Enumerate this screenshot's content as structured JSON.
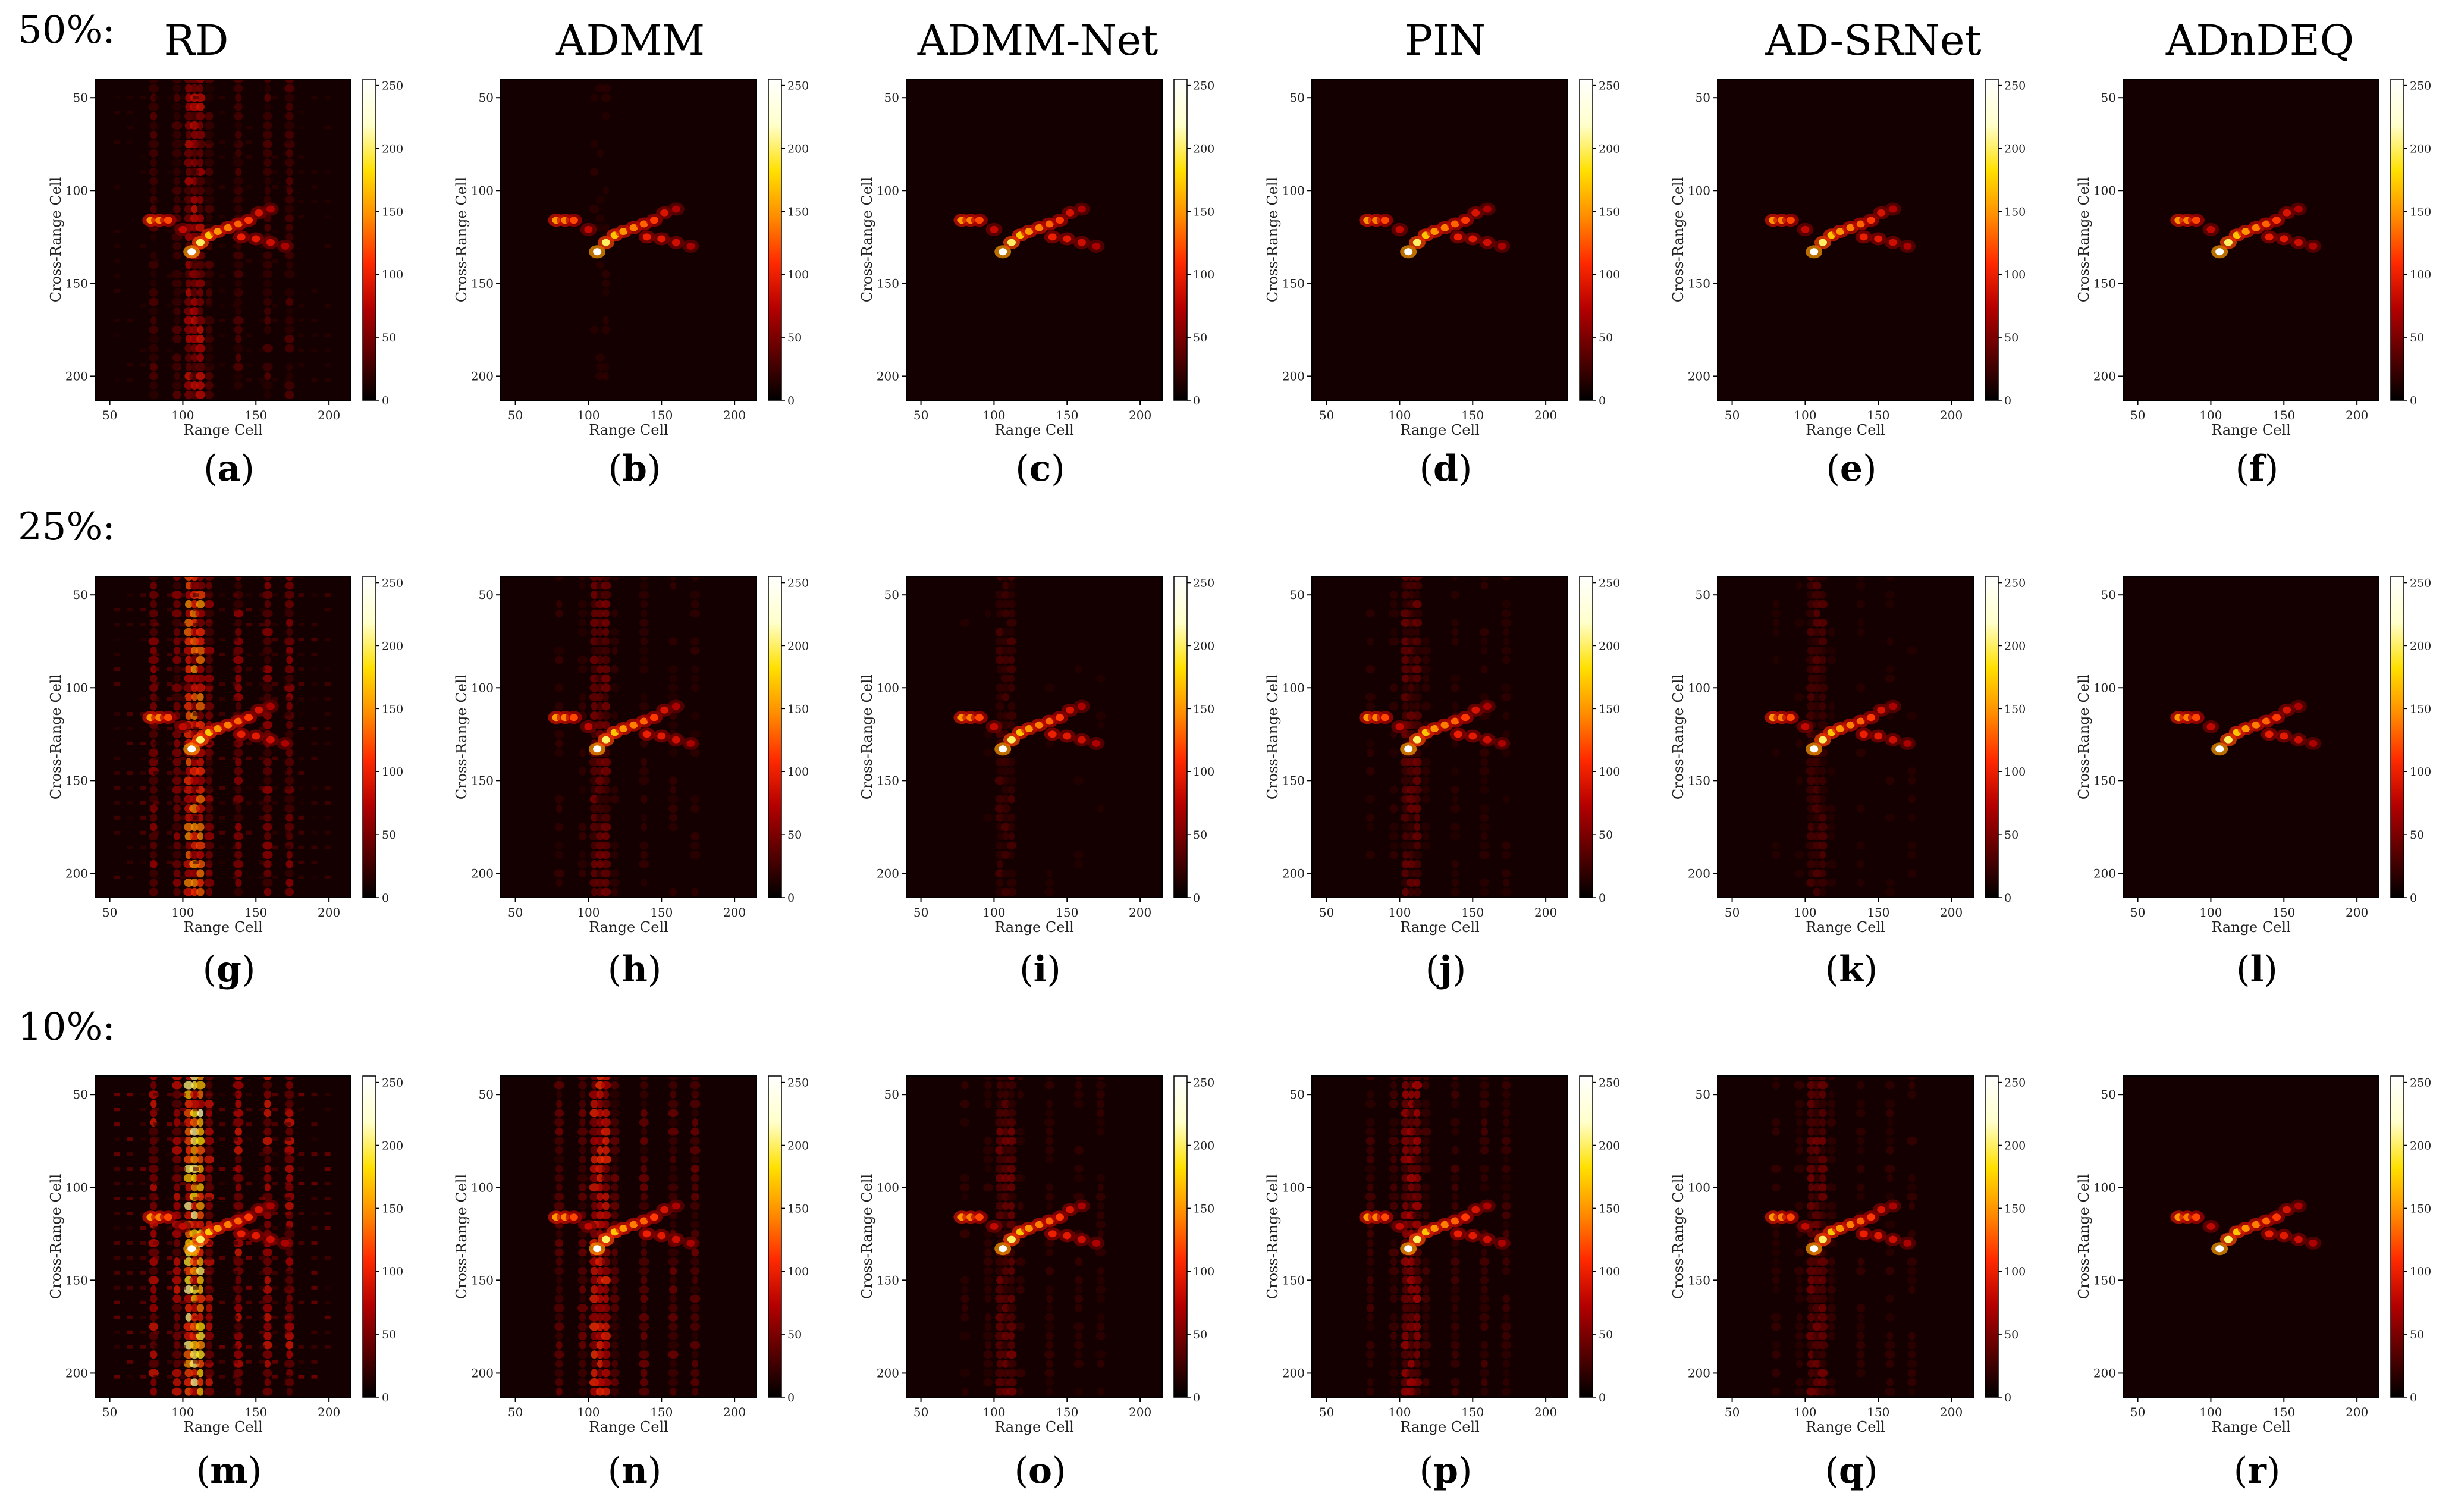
{
  "figure": {
    "method_titles": [
      "RD",
      "ADMM",
      "ADMM-Net",
      "PIN",
      "AD-SRNet",
      "ADnDEQ"
    ],
    "rows": [
      {
        "ratio_label": "50%:",
        "captions": [
          "a",
          "b",
          "c",
          "d",
          "e",
          "f"
        ]
      },
      {
        "ratio_label": "25%:",
        "captions": [
          "g",
          "h",
          "i",
          "j",
          "k",
          "l"
        ]
      },
      {
        "ratio_label": "10%:",
        "captions": [
          "m",
          "n",
          "o",
          "p",
          "q",
          "r"
        ]
      }
    ]
  },
  "chart_data": {
    "type": "heatmap",
    "panel_count": 18,
    "xlabel": "Range Cell",
    "ylabel": "Cross-Range Cell",
    "x_ticks": [
      50,
      100,
      150,
      200
    ],
    "y_ticks": [
      50,
      100,
      150,
      200
    ],
    "xlim": [
      40,
      215
    ],
    "ylim": [
      213,
      40
    ],
    "colorbar_ticks": [
      0,
      50,
      100,
      150,
      200,
      250
    ],
    "colorbar_range": [
      0,
      255
    ],
    "colormap": "hot",
    "colors": {
      "background": "#140000",
      "colorbar_stops": [
        "#000000",
        "#5a0000",
        "#b40000",
        "#ff2a00",
        "#ff8c00",
        "#ffe000",
        "#ffffcc",
        "#ffffff"
      ]
    },
    "target": {
      "points": [
        {
          "x": 106,
          "y": 133,
          "intensity": 255
        },
        {
          "x": 112,
          "y": 128,
          "intensity": 200
        },
        {
          "x": 118,
          "y": 124,
          "intensity": 170
        },
        {
          "x": 124,
          "y": 122,
          "intensity": 150
        },
        {
          "x": 131,
          "y": 120,
          "intensity": 140
        },
        {
          "x": 138,
          "y": 118,
          "intensity": 130
        },
        {
          "x": 145,
          "y": 116,
          "intensity": 115
        },
        {
          "x": 152,
          "y": 112,
          "intensity": 90
        },
        {
          "x": 160,
          "y": 110,
          "intensity": 70
        },
        {
          "x": 140,
          "y": 125,
          "intensity": 100
        },
        {
          "x": 150,
          "y": 126,
          "intensity": 95
        },
        {
          "x": 160,
          "y": 128,
          "intensity": 85
        },
        {
          "x": 170,
          "y": 130,
          "intensity": 70
        },
        {
          "x": 78,
          "y": 116,
          "intensity": 150
        },
        {
          "x": 84,
          "y": 116,
          "intensity": 140
        },
        {
          "x": 90,
          "y": 116,
          "intensity": 120
        },
        {
          "x": 100,
          "y": 121,
          "intensity": 80
        }
      ]
    },
    "streak_center_x": 108,
    "panels": [
      {
        "caption": "a",
        "method": "RD",
        "ratio": "50%",
        "streak": 0.35,
        "speckle": 0.15
      },
      {
        "caption": "b",
        "method": "ADMM",
        "ratio": "50%",
        "streak": 0.08,
        "speckle": 0.05
      },
      {
        "caption": "c",
        "method": "ADMM-Net",
        "ratio": "50%",
        "streak": 0.05,
        "speckle": 0.04
      },
      {
        "caption": "d",
        "method": "PIN",
        "ratio": "50%",
        "streak": 0.05,
        "speckle": 0.04
      },
      {
        "caption": "e",
        "method": "AD-SRNet",
        "ratio": "50%",
        "streak": 0.04,
        "speckle": 0.03
      },
      {
        "caption": "f",
        "method": "ADnDEQ",
        "ratio": "50%",
        "streak": 0.03,
        "speckle": 0.03
      },
      {
        "caption": "g",
        "method": "RD",
        "ratio": "25%",
        "streak": 0.6,
        "speckle": 0.3
      },
      {
        "caption": "h",
        "method": "ADMM",
        "ratio": "25%",
        "streak": 0.22,
        "speckle": 0.08
      },
      {
        "caption": "i",
        "method": "ADMM-Net",
        "ratio": "25%",
        "streak": 0.14,
        "speckle": 0.06
      },
      {
        "caption": "j",
        "method": "PIN",
        "ratio": "25%",
        "streak": 0.2,
        "speckle": 0.06
      },
      {
        "caption": "k",
        "method": "AD-SRNet",
        "ratio": "25%",
        "streak": 0.16,
        "speckle": 0.05
      },
      {
        "caption": "l",
        "method": "ADnDEQ",
        "ratio": "25%",
        "streak": 0.04,
        "speckle": 0.03
      },
      {
        "caption": "m",
        "method": "RD",
        "ratio": "10%",
        "streak": 0.85,
        "speckle": 0.45
      },
      {
        "caption": "n",
        "method": "ADMM",
        "ratio": "10%",
        "streak": 0.45,
        "speckle": 0.1
      },
      {
        "caption": "o",
        "method": "ADMM-Net",
        "ratio": "10%",
        "streak": 0.22,
        "speckle": 0.06
      },
      {
        "caption": "p",
        "method": "PIN",
        "ratio": "10%",
        "streak": 0.3,
        "speckle": 0.07
      },
      {
        "caption": "q",
        "method": "AD-SRNet",
        "ratio": "10%",
        "streak": 0.22,
        "speckle": 0.05
      },
      {
        "caption": "r",
        "method": "ADnDEQ",
        "ratio": "10%",
        "streak": 0.05,
        "speckle": 0.03
      }
    ]
  }
}
